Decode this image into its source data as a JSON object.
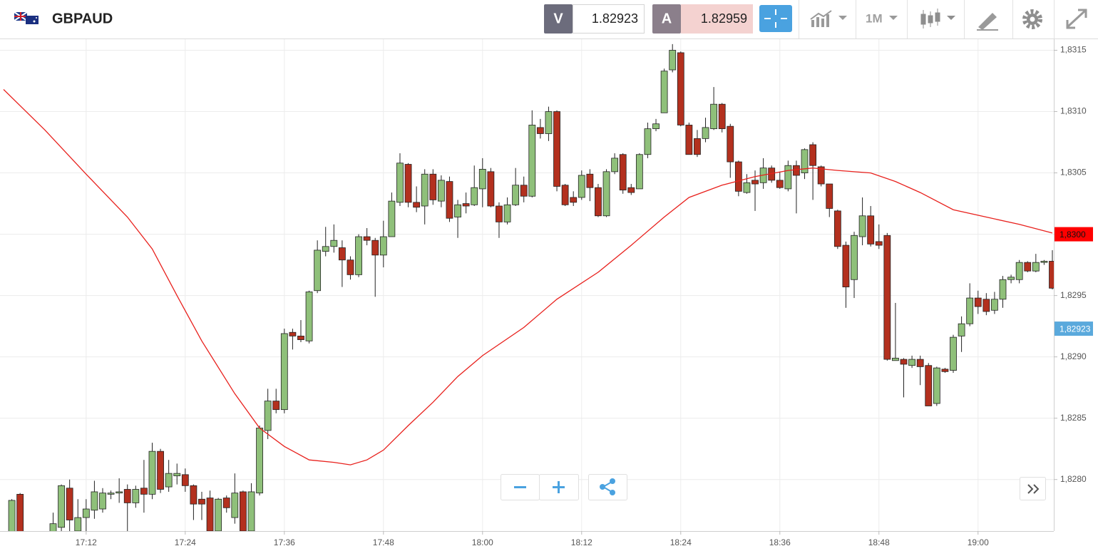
{
  "toolbar": {
    "symbol": "GBPAUD",
    "bid_key": "V",
    "bid": "1.82923",
    "ask_key": "A",
    "ask": "1.82959",
    "period": "1M"
  },
  "chart_data": {
    "type": "candlestick",
    "up_color": "#8fc07a",
    "down_color": "#b3301e",
    "grid": true,
    "xlim": [
      "17:02",
      "19:09"
    ],
    "xticks": [
      "17:12",
      "17:24",
      "17:36",
      "17:48",
      "18:00",
      "18:12",
      "18:24",
      "18:36",
      "18:48",
      "19:00"
    ],
    "ylim": [
      1.82758,
      1.83159
    ],
    "yticks": [
      {
        "value": 1.828,
        "label": "1,8280"
      },
      {
        "value": 1.8285,
        "label": "1,8285"
      },
      {
        "value": 1.829,
        "label": "1,8290"
      },
      {
        "value": 1.8295,
        "label": "1,8295"
      },
      {
        "value": 1.83,
        "label": "1,8300"
      },
      {
        "value": 1.8305,
        "label": "1,8305"
      },
      {
        "value": 1.831,
        "label": "1,8310"
      },
      {
        "value": 1.8315,
        "label": "1,8315"
      }
    ],
    "x": [
      "17:03",
      "17:04",
      "17:08",
      "17:09",
      "17:10",
      "17:11",
      "17:12",
      "17:13",
      "17:14",
      "17:15",
      "17:16",
      "17:17",
      "17:18",
      "17:19",
      "17:20",
      "17:21",
      "17:22",
      "17:23",
      "17:24",
      "17:25",
      "17:26",
      "17:27",
      "17:28",
      "17:29",
      "17:30",
      "17:31",
      "17:32",
      "17:33",
      "17:34",
      "17:35",
      "17:36",
      "17:37",
      "17:38",
      "17:39",
      "17:40",
      "17:41",
      "17:42",
      "17:43",
      "17:44",
      "17:45",
      "17:46",
      "17:47",
      "17:48",
      "17:49",
      "17:50",
      "17:51",
      "17:52",
      "17:53",
      "17:54",
      "17:55",
      "17:56",
      "17:57",
      "17:58",
      "17:59",
      "18:00",
      "18:01",
      "18:02",
      "18:03",
      "18:04",
      "18:05",
      "18:06",
      "18:07",
      "18:08",
      "18:09",
      "18:10",
      "18:11",
      "18:12",
      "18:13",
      "18:14",
      "18:15",
      "18:16",
      "18:17",
      "18:18",
      "18:19",
      "18:20",
      "18:21",
      "18:22",
      "18:23",
      "18:24",
      "18:25",
      "18:26",
      "18:27",
      "18:28",
      "18:29",
      "18:30",
      "18:31",
      "18:32",
      "18:33",
      "18:34",
      "18:35",
      "18:36",
      "18:37",
      "18:38",
      "18:39",
      "18:40",
      "18:41",
      "18:42",
      "18:43",
      "18:44",
      "18:45",
      "18:46",
      "18:47",
      "18:48",
      "18:49",
      "18:50",
      "18:51",
      "18:52",
      "18:53",
      "18:54",
      "18:55",
      "18:56",
      "18:57",
      "18:58",
      "18:59",
      "19:00",
      "19:01",
      "19:02",
      "19:03",
      "19:04",
      "19:05",
      "19:06",
      "19:07",
      "19:08",
      "19:09"
    ],
    "open": [
      1.82755,
      1.82788,
      1.82756,
      1.82761,
      1.82793,
      1.82758,
      1.82769,
      1.82775,
      1.82776,
      1.82788,
      1.82789,
      1.82792,
      1.82781,
      1.82793,
      1.82788,
      1.82823,
      1.82794,
      1.82803,
      1.82804,
      1.82795,
      1.82784,
      1.82785,
      1.82758,
      1.82785,
      1.82769,
      1.8279,
      1.82758,
      1.82789,
      1.8284,
      1.82864,
      1.82857,
      1.8292,
      1.82917,
      1.82913,
      1.82954,
      1.82986,
      1.8299,
      1.82989,
      1.82979,
      1.82967,
      1.82998,
      1.82995,
      1.82983,
      1.82998,
      1.83026,
      1.83057,
      1.83026,
      1.83023,
      1.83049,
      1.83027,
      1.83043,
      1.83014,
      1.83025,
      1.83024,
      1.83037,
      1.83051,
      1.83023,
      1.8301,
      1.83024,
      1.8304,
      1.83031,
      1.83087,
      1.83082,
      1.831,
      1.8304,
      1.8303,
      1.8303,
      1.83049,
      1.83038,
      1.83015,
      1.83051,
      1.83065,
      1.83038,
      1.83037,
      1.83065,
      1.83086,
      1.83099,
      1.83134,
      1.83148,
      1.83089,
      1.83078,
      1.83078,
      1.83086,
      1.83106,
      1.83088,
      1.83059,
      1.83034,
      1.83044,
      1.83042,
      1.83054,
      1.83044,
      1.83037,
      1.83056,
      1.8305,
      1.83073,
      1.83055,
      1.83041,
      1.83019,
      1.82991,
      1.82963,
      1.82998,
      1.83015,
      1.82994,
      1.82999,
      1.82897,
      1.82898,
      1.82893,
      1.82898,
      1.82893,
      1.82862,
      1.8289,
      1.82889,
      1.82917,
      1.82927,
      1.82948,
      1.82947,
      1.82938,
      1.82947,
      1.82963,
      1.82963,
      1.82977,
      1.8297,
      1.82977,
      1.82978
    ],
    "high": [
      1.82784,
      1.82789,
      1.82773,
      1.82796,
      1.828,
      1.82784,
      1.82784,
      1.82799,
      1.82793,
      1.82791,
      1.82801,
      1.82796,
      1.82795,
      1.82816,
      1.8283,
      1.82825,
      1.82816,
      1.82813,
      1.82809,
      1.82796,
      1.8279,
      1.82791,
      1.82785,
      1.82787,
      1.82805,
      1.82791,
      1.82797,
      1.82844,
      1.82874,
      1.82874,
      1.82923,
      1.82923,
      1.8293,
      1.82954,
      1.82995,
      1.83006,
      1.83008,
      1.82995,
      1.82982,
      1.83,
      1.83005,
      1.82997,
      1.83011,
      1.83034,
      1.83066,
      1.83058,
      1.83039,
      1.83053,
      1.83053,
      1.83048,
      1.83047,
      1.83028,
      1.83034,
      1.83056,
      1.83062,
      1.83054,
      1.83026,
      1.8303,
      1.83054,
      1.83047,
      1.83101,
      1.83094,
      1.83104,
      1.83101,
      1.83041,
      1.83035,
      1.83052,
      1.83053,
      1.83041,
      1.83053,
      1.83066,
      1.83066,
      1.83041,
      1.83066,
      1.83091,
      1.83094,
      1.83135,
      1.83155,
      1.83149,
      1.83091,
      1.83085,
      1.83095,
      1.8312,
      1.83107,
      1.8309,
      1.8306,
      1.83049,
      1.83052,
      1.83062,
      1.83056,
      1.83051,
      1.8306,
      1.8306,
      1.8307,
      1.83075,
      1.83056,
      1.83041,
      1.8302,
      1.82994,
      1.83002,
      1.8303,
      1.83023,
      1.83008,
      1.83001,
      1.82944,
      1.82899,
      1.82901,
      1.82901,
      1.82895,
      1.82892,
      1.82891,
      1.82918,
      1.82933,
      1.8296,
      1.82954,
      1.82952,
      1.82953,
      1.82966,
      1.82967,
      1.82979,
      1.82978,
      1.82984,
      1.82979,
      1.82987
    ],
    "low": [
      1.82749,
      1.82749,
      1.82755,
      1.82758,
      1.82758,
      1.82755,
      1.82758,
      1.82768,
      1.82773,
      1.82784,
      1.82781,
      1.82758,
      1.82777,
      1.82773,
      1.82784,
      1.82789,
      1.8279,
      1.82796,
      1.8279,
      1.82767,
      1.82767,
      1.82755,
      1.82755,
      1.82773,
      1.82764,
      1.82755,
      1.82755,
      1.82787,
      1.82833,
      1.82854,
      1.82854,
      1.82906,
      1.82912,
      1.82911,
      1.82952,
      1.82982,
      1.82985,
      1.82957,
      1.82963,
      1.82965,
      1.82991,
      1.82949,
      1.82973,
      1.82998,
      1.83023,
      1.83022,
      1.83018,
      1.83008,
      1.83024,
      1.83022,
      1.8301,
      1.82997,
      1.83017,
      1.83023,
      1.83022,
      1.83022,
      1.82997,
      1.83008,
      1.83023,
      1.83026,
      1.8303,
      1.83078,
      1.83076,
      1.83035,
      1.83023,
      1.83023,
      1.83028,
      1.83027,
      1.83014,
      1.83014,
      1.83049,
      1.83033,
      1.83032,
      1.83037,
      1.83062,
      1.83084,
      1.83099,
      1.83132,
      1.83088,
      1.83065,
      1.83063,
      1.83075,
      1.83085,
      1.83083,
      1.83046,
      1.83031,
      1.83033,
      1.83019,
      1.83037,
      1.83042,
      1.83037,
      1.83035,
      1.83017,
      1.83045,
      1.83028,
      1.83039,
      1.83014,
      1.82988,
      1.8294,
      1.82948,
      1.82991,
      1.8299,
      1.82988,
      1.82897,
      1.82897,
      1.82867,
      1.82891,
      1.82877,
      1.8286,
      1.8286,
      1.82887,
      1.82887,
      1.82904,
      1.82925,
      1.82935,
      1.82934,
      1.82935,
      1.8294,
      1.8296,
      1.8296,
      1.82969,
      1.82969,
      1.82975,
      1.82955
    ],
    "close": [
      1.82783,
      1.82755,
      1.82764,
      1.82795,
      1.82767,
      1.82769,
      1.82776,
      1.8279,
      1.82789,
      1.82789,
      1.8279,
      1.82781,
      1.82792,
      1.82788,
      1.82823,
      1.82792,
      1.82805,
      1.82805,
      1.82795,
      1.8278,
      1.8278,
      1.82758,
      1.82784,
      1.82777,
      1.82789,
      1.82758,
      1.8279,
      1.82842,
      1.82864,
      1.82857,
      1.82919,
      1.82917,
      1.82914,
      1.82953,
      1.82987,
      1.8299,
      1.82995,
      1.82979,
      1.82967,
      1.82998,
      1.82995,
      1.82983,
      1.82998,
      1.83027,
      1.83058,
      1.83026,
      1.83022,
      1.83049,
      1.83028,
      1.83044,
      1.83013,
      1.83024,
      1.83023,
      1.83038,
      1.83053,
      1.83023,
      1.8301,
      1.83024,
      1.8304,
      1.83031,
      1.83089,
      1.83082,
      1.831,
      1.83039,
      1.83024,
      1.83026,
      1.83048,
      1.83038,
      1.83015,
      1.83051,
      1.83062,
      1.83036,
      1.83034,
      1.83065,
      1.83086,
      1.8309,
      1.83133,
      1.8315,
      1.83089,
      1.83065,
      1.83065,
      1.83087,
      1.83106,
      1.83086,
      1.83059,
      1.83035,
      1.83042,
      1.83041,
      1.83054,
      1.83044,
      1.83038,
      1.83056,
      1.83048,
      1.83069,
      1.83056,
      1.83041,
      1.83021,
      1.8299,
      1.82957,
      1.82999,
      1.83015,
      1.82992,
      1.82991,
      1.82898,
      1.82899,
      1.82894,
      1.82898,
      1.82892,
      1.8286,
      1.82891,
      1.82888,
      1.82916,
      1.82927,
      1.82948,
      1.82941,
      1.82937,
      1.82947,
      1.82963,
      1.82965,
      1.82977,
      1.8297,
      1.82977,
      1.82978,
      1.82956
    ],
    "ma": {
      "color": "#e8201c",
      "x": [
        "17:02",
        "17:07",
        "17:12",
        "17:17",
        "17:20",
        "17:23",
        "17:26",
        "17:30",
        "17:33",
        "17:36",
        "17:39",
        "17:42",
        "17:44",
        "17:46",
        "17:48",
        "17:51",
        "17:54",
        "17:57",
        "18:00",
        "18:05",
        "18:09",
        "18:14",
        "18:18",
        "18:22",
        "18:25",
        "18:29",
        "18:33",
        "18:37",
        "18:40",
        "18:43",
        "18:47",
        "18:50",
        "18:53",
        "18:57",
        "19:01",
        "19:05",
        "19:09"
      ],
      "values": [
        1.83118,
        1.83085,
        1.83049,
        1.83014,
        1.82988,
        1.8295,
        1.82913,
        1.8287,
        1.82842,
        1.82827,
        1.82816,
        1.82814,
        1.82812,
        1.82816,
        1.82824,
        1.82844,
        1.82863,
        1.82884,
        1.82901,
        1.82924,
        1.82947,
        1.82969,
        1.82991,
        1.83014,
        1.8303,
        1.8304,
        1.83047,
        1.83052,
        1.83054,
        1.83052,
        1.8305,
        1.83043,
        1.83034,
        1.8302,
        1.83014,
        1.83008,
        1.83001
      ]
    },
    "ma_tag": {
      "value": 1.83,
      "label": "1,8300",
      "color": "#ff0000"
    },
    "bid_tag": {
      "value": 1.82923,
      "label": "1,82923",
      "color": "#5aa9dc"
    }
  }
}
